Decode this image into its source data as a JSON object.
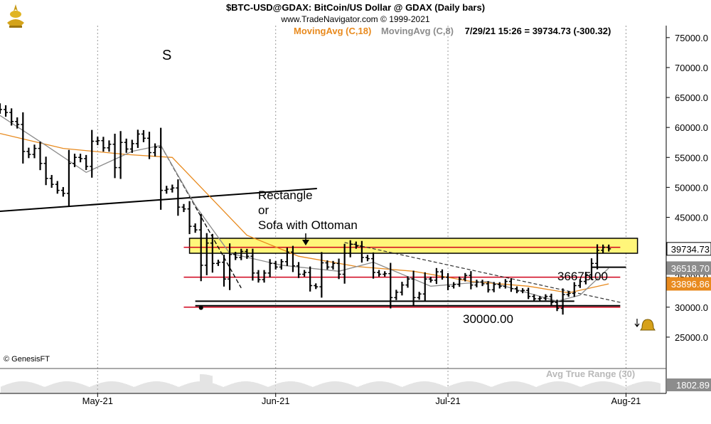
{
  "header": {
    "title": "$BTC-USD@GDAX:  BitCoin/US Dollar @ GDAX  (Daily bars)",
    "copyright": "www.TradeNavigator.com © 1999-2021",
    "ma_long": "MovingAvg (C,18)",
    "ma_short": "MovingAvg (C,8)",
    "quote": "7/29/21 15:26 = 39734.73 (-300.32)"
  },
  "footer": {
    "genesis": "© GenesisFT",
    "atr_label": "Avg True Range (30)"
  },
  "annotations": {
    "s_mark": "S",
    "rectangle_1": "Rectangle",
    "rectangle_2": "or",
    "rectangle_3": "Sofa with Ottoman",
    "level_mid": "36675.00",
    "level_low": "30000.00"
  },
  "price_boxes": {
    "last": "39734.73",
    "ma8": "36518.70",
    "ma18": "33896.86",
    "atr": "1802.89"
  },
  "colors": {
    "ma_long": "#e88a1e",
    "ma_short": "#8c8c8c",
    "highlight": "#fff67a",
    "level_line": "#d0021b",
    "bars": "#000000"
  },
  "icons": [
    "trade-navigator-logo-icon",
    "alert-bell-icon"
  ],
  "chart_data": {
    "type": "line",
    "title": "$BTC-USD@GDAX:  BitCoin/US Dollar @ GDAX  (Daily bars)",
    "ylim": [
      20000,
      77000
    ],
    "y_ticks": [
      "75000.0",
      "70000.0",
      "65000.0",
      "60000.0",
      "55000.0",
      "50000.0",
      "45000.0",
      "40000.0",
      "35000.0",
      "30000.0",
      "25000.0"
    ],
    "x_ticks": [
      "May-21",
      "Jun-21",
      "Jul-21",
      "Aug-21"
    ],
    "x_range": [
      "2021-04-14",
      "2021-08-08"
    ],
    "grid": "vertical-dotted",
    "closes": [
      [
        "2021-04-14",
        63000
      ],
      [
        "2021-04-15",
        62500
      ],
      [
        "2021-04-16",
        61000
      ],
      [
        "2021-04-17",
        60500
      ],
      [
        "2021-04-18",
        56000
      ],
      [
        "2021-04-19",
        55500
      ],
      [
        "2021-04-20",
        56500
      ],
      [
        "2021-04-21",
        54000
      ],
      [
        "2021-04-22",
        51500
      ],
      [
        "2021-04-23",
        50500
      ],
      [
        "2021-04-24",
        49500
      ],
      [
        "2021-04-25",
        49000
      ],
      [
        "2021-04-26",
        54000
      ],
      [
        "2021-04-27",
        55000
      ],
      [
        "2021-04-28",
        54800
      ],
      [
        "2021-04-29",
        53500
      ],
      [
        "2021-04-30",
        57700
      ],
      [
        "2021-05-01",
        57800
      ],
      [
        "2021-05-02",
        56600
      ],
      [
        "2021-05-03",
        57200
      ],
      [
        "2021-05-04",
        53300
      ],
      [
        "2021-05-05",
        57500
      ],
      [
        "2021-05-06",
        56400
      ],
      [
        "2021-05-07",
        57300
      ],
      [
        "2021-05-08",
        58900
      ],
      [
        "2021-05-09",
        58200
      ],
      [
        "2021-05-10",
        55800
      ],
      [
        "2021-05-11",
        56700
      ],
      [
        "2021-05-12",
        49500
      ],
      [
        "2021-05-13",
        49700
      ],
      [
        "2021-05-14",
        49900
      ],
      [
        "2021-05-15",
        46700
      ],
      [
        "2021-05-16",
        46400
      ],
      [
        "2021-05-17",
        43500
      ],
      [
        "2021-05-18",
        42900
      ],
      [
        "2021-05-19",
        37000
      ],
      [
        "2021-05-20",
        40700
      ],
      [
        "2021-05-21",
        37300
      ],
      [
        "2021-05-22",
        37500
      ],
      [
        "2021-05-23",
        34700
      ],
      [
        "2021-05-24",
        38800
      ],
      [
        "2021-05-25",
        38300
      ],
      [
        "2021-05-26",
        39300
      ],
      [
        "2021-05-27",
        38500
      ],
      [
        "2021-05-28",
        35700
      ],
      [
        "2021-05-29",
        34600
      ],
      [
        "2021-05-30",
        35700
      ],
      [
        "2021-05-31",
        37300
      ],
      [
        "2021-06-01",
        36700
      ],
      [
        "2021-06-02",
        37600
      ],
      [
        "2021-06-03",
        39200
      ],
      [
        "2021-06-04",
        36900
      ],
      [
        "2021-06-05",
        35500
      ],
      [
        "2021-06-06",
        35800
      ],
      [
        "2021-06-07",
        33600
      ],
      [
        "2021-06-08",
        33400
      ],
      [
        "2021-06-09",
        37400
      ],
      [
        "2021-06-10",
        36700
      ],
      [
        "2021-06-11",
        37300
      ],
      [
        "2021-06-12",
        35500
      ],
      [
        "2021-06-13",
        39000
      ],
      [
        "2021-06-14",
        40500
      ],
      [
        "2021-06-15",
        40200
      ],
      [
        "2021-06-16",
        38300
      ],
      [
        "2021-06-17",
        38100
      ],
      [
        "2021-06-18",
        35800
      ],
      [
        "2021-06-19",
        35500
      ],
      [
        "2021-06-20",
        35600
      ],
      [
        "2021-06-21",
        31600
      ],
      [
        "2021-06-22",
        32500
      ],
      [
        "2021-06-23",
        33700
      ],
      [
        "2021-06-24",
        34700
      ],
      [
        "2021-06-25",
        31600
      ],
      [
        "2021-06-26",
        32200
      ],
      [
        "2021-06-27",
        34700
      ],
      [
        "2021-06-28",
        34500
      ],
      [
        "2021-06-29",
        35900
      ],
      [
        "2021-06-30",
        35000
      ],
      [
        "2021-07-01",
        33500
      ],
      [
        "2021-07-02",
        33800
      ],
      [
        "2021-07-03",
        34700
      ],
      [
        "2021-07-04",
        35300
      ],
      [
        "2021-07-05",
        33700
      ],
      [
        "2021-07-06",
        34200
      ],
      [
        "2021-07-07",
        33900
      ],
      [
        "2021-07-08",
        32900
      ],
      [
        "2021-07-09",
        33800
      ],
      [
        "2021-07-10",
        33500
      ],
      [
        "2021-07-11",
        34300
      ],
      [
        "2021-07-12",
        33100
      ],
      [
        "2021-07-13",
        32700
      ],
      [
        "2021-07-14",
        32800
      ],
      [
        "2021-07-15",
        31800
      ],
      [
        "2021-07-16",
        31400
      ],
      [
        "2021-07-17",
        31500
      ],
      [
        "2021-07-18",
        31800
      ],
      [
        "2021-07-19",
        30800
      ],
      [
        "2021-07-20",
        29800
      ],
      [
        "2021-07-21",
        32100
      ],
      [
        "2021-07-22",
        32300
      ],
      [
        "2021-07-23",
        33600
      ],
      [
        "2021-07-24",
        34300
      ],
      [
        "2021-07-25",
        35400
      ],
      [
        "2021-07-26",
        37300
      ],
      [
        "2021-07-27",
        39500
      ],
      [
        "2021-07-28",
        40000
      ],
      [
        "2021-07-29",
        39734.73
      ]
    ],
    "series": [
      {
        "name": "MovingAvg (C,18)",
        "values": [
          [
            "2021-04-14",
            59000
          ],
          [
            "2021-04-25",
            56500
          ],
          [
            "2021-05-06",
            55500
          ],
          [
            "2021-05-14",
            55000
          ],
          [
            "2021-05-20",
            49000
          ],
          [
            "2021-05-27",
            42000
          ],
          [
            "2021-06-05",
            38500
          ],
          [
            "2021-06-15",
            36800
          ],
          [
            "2021-06-25",
            36000
          ],
          [
            "2021-07-05",
            34300
          ],
          [
            "2021-07-15",
            33500
          ],
          [
            "2021-07-22",
            32400
          ],
          [
            "2021-07-29",
            33896.86
          ]
        ]
      },
      {
        "name": "MovingAvg (C,8)",
        "values": [
          [
            "2021-04-14",
            62000
          ],
          [
            "2021-04-22",
            57000
          ],
          [
            "2021-04-29",
            52500
          ],
          [
            "2021-05-07",
            56000
          ],
          [
            "2021-05-12",
            57000
          ],
          [
            "2021-05-18",
            47000
          ],
          [
            "2021-05-24",
            39000
          ],
          [
            "2021-06-02",
            37000
          ],
          [
            "2021-06-12",
            36000
          ],
          [
            "2021-06-18",
            37500
          ],
          [
            "2021-06-28",
            33500
          ],
          [
            "2021-07-08",
            34300
          ],
          [
            "2021-07-20",
            31000
          ],
          [
            "2021-07-24",
            32000
          ],
          [
            "2021-07-29",
            36518.7
          ]
        ]
      }
    ],
    "levels": [
      {
        "value": 40000,
        "color": "red"
      },
      {
        "value": 36675,
        "label": "36675.00",
        "color": "black"
      },
      {
        "value": 35000,
        "color": "red"
      },
      {
        "value": 31000,
        "color": "black"
      },
      {
        "value": 30000,
        "label": "30000.00",
        "color": "red"
      }
    ]
  }
}
